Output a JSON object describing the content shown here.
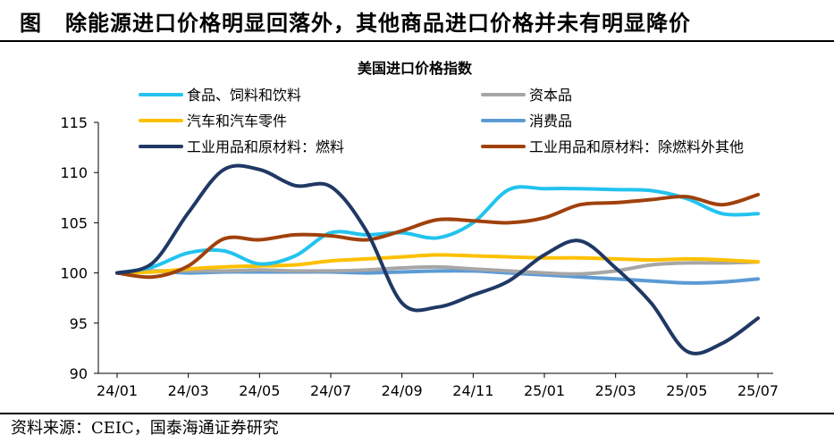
{
  "figure": {
    "label": "图",
    "title": "除能源进口价格明显回落外，其他商品进口价格并未有明显降价",
    "source": "资料来源：CEIC，国泰海通证券研究"
  },
  "chart_data": {
    "type": "line",
    "title": "美国进口价格指数",
    "xlabel": "",
    "ylabel": "",
    "ylim": [
      90,
      115
    ],
    "yticks": [
      "90",
      "95",
      "100",
      "105",
      "110",
      "115"
    ],
    "xtick_labels": [
      "24/01",
      "24/03",
      "24/05",
      "24/07",
      "24/09",
      "24/11",
      "25/01",
      "25/03",
      "25/05",
      "25/07"
    ],
    "categories": [
      "24/01",
      "24/02",
      "24/03",
      "24/04",
      "24/05",
      "24/06",
      "24/07",
      "24/08",
      "24/09",
      "24/10",
      "24/11",
      "24/12",
      "25/01",
      "25/02",
      "25/03",
      "25/04",
      "25/05",
      "25/06",
      "25/07"
    ],
    "grid": false,
    "legend_position": "top",
    "series": [
      {
        "name": "食品、饲料和饮料",
        "color": "#22c3ee",
        "values": [
          100.0,
          100.6,
          102.0,
          102.2,
          100.9,
          101.7,
          104.0,
          103.8,
          104.0,
          103.5,
          105.0,
          108.3,
          108.4,
          108.4,
          108.3,
          108.2,
          107.4,
          105.9,
          105.9
        ]
      },
      {
        "name": "资本品",
        "color": "#a6a6a6",
        "values": [
          100.0,
          100.2,
          100.2,
          100.2,
          100.3,
          100.2,
          100.2,
          100.3,
          100.5,
          100.6,
          100.4,
          100.2,
          100.0,
          99.9,
          100.2,
          100.8,
          101.0,
          101.0,
          101.1
        ]
      },
      {
        "name": "汽车和汽车零件",
        "color": "#ffc000",
        "values": [
          100.0,
          100.1,
          100.4,
          100.6,
          100.7,
          100.8,
          101.2,
          101.4,
          101.6,
          101.8,
          101.7,
          101.6,
          101.5,
          101.5,
          101.4,
          101.3,
          101.4,
          101.3,
          101.1
        ]
      },
      {
        "name": "消费品",
        "color": "#5b9bd5",
        "values": [
          100.0,
          100.2,
          100.0,
          100.1,
          100.1,
          100.1,
          100.1,
          100.0,
          100.1,
          100.2,
          100.2,
          100.0,
          99.8,
          99.6,
          99.4,
          99.2,
          99.0,
          99.1,
          99.4
        ]
      },
      {
        "name": "工业用品和原材料：燃料",
        "color": "#203864",
        "values": [
          100.0,
          101.0,
          106.0,
          110.3,
          110.3,
          108.7,
          108.6,
          104.2,
          97.0,
          96.6,
          97.8,
          99.2,
          101.8,
          103.2,
          100.5,
          97.0,
          92.2,
          93.0,
          95.5
        ]
      },
      {
        "name": "工业用品和原材料：除燃料外其他",
        "color": "#a0410d",
        "values": [
          100.0,
          99.6,
          100.7,
          103.4,
          103.3,
          103.8,
          103.7,
          103.3,
          104.2,
          105.3,
          105.2,
          105.0,
          105.5,
          106.8,
          107.0,
          107.3,
          107.6,
          106.8,
          107.8
        ]
      }
    ]
  }
}
